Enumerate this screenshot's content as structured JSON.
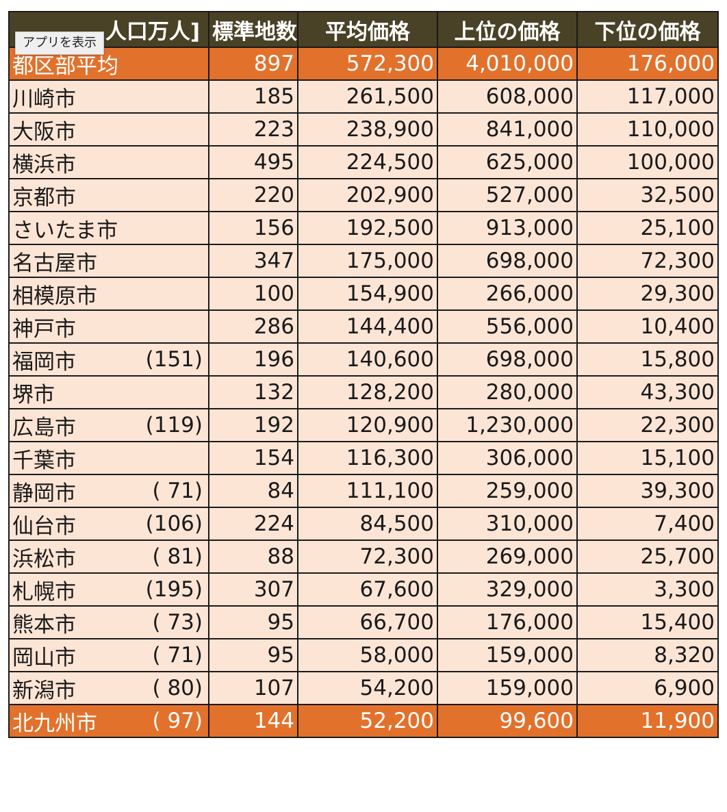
{
  "tooltip": {
    "label": "アプリを表示"
  },
  "header": {
    "name_partial": "人口万人]",
    "count": "標準地数",
    "avg": "平均価格",
    "top": "上位の価格",
    "low": "下位の価格"
  },
  "rows": [
    {
      "city": "都区部平均",
      "pop": "",
      "count": "897",
      "avg": "572,300",
      "top": "4,010,000",
      "low": "176,000",
      "highlight": true
    },
    {
      "city": "川崎市",
      "pop": "",
      "count": "185",
      "avg": "261,500",
      "top": "608,000",
      "low": "117,000"
    },
    {
      "city": "大阪市",
      "pop": "",
      "count": "223",
      "avg": "238,900",
      "top": "841,000",
      "low": "110,000"
    },
    {
      "city": "横浜市",
      "pop": "",
      "count": "495",
      "avg": "224,500",
      "top": "625,000",
      "low": "100,000"
    },
    {
      "city": "京都市",
      "pop": "",
      "count": "220",
      "avg": "202,900",
      "top": "527,000",
      "low": "32,500"
    },
    {
      "city": "さいたま市",
      "pop": "",
      "count": "156",
      "avg": "192,500",
      "top": "913,000",
      "low": "25,100"
    },
    {
      "city": "名古屋市",
      "pop": "",
      "count": "347",
      "avg": "175,000",
      "top": "698,000",
      "low": "72,300"
    },
    {
      "city": "相模原市",
      "pop": "",
      "count": "100",
      "avg": "154,900",
      "top": "266,000",
      "low": "29,300"
    },
    {
      "city": "神戸市",
      "pop": "",
      "count": "286",
      "avg": "144,400",
      "top": "556,000",
      "low": "10,400"
    },
    {
      "city": "福岡市",
      "pop": "(151)",
      "count": "196",
      "avg": "140,600",
      "top": "698,000",
      "low": "15,800"
    },
    {
      "city": "堺市",
      "pop": "",
      "count": "132",
      "avg": "128,200",
      "top": "280,000",
      "low": "43,300"
    },
    {
      "city": "広島市",
      "pop": "(119)",
      "count": "192",
      "avg": "120,900",
      "top": "1,230,000",
      "low": "22,300"
    },
    {
      "city": "千葉市",
      "pop": "",
      "count": "154",
      "avg": "116,300",
      "top": "306,000",
      "low": "15,100"
    },
    {
      "city": "静岡市",
      "pop": "( 71)",
      "count": "84",
      "avg": "111,100",
      "top": "259,000",
      "low": "39,300"
    },
    {
      "city": "仙台市",
      "pop": "(106)",
      "count": "224",
      "avg": "84,500",
      "top": "310,000",
      "low": "7,400"
    },
    {
      "city": "浜松市",
      "pop": "( 81)",
      "count": "88",
      "avg": "72,300",
      "top": "269,000",
      "low": "25,700"
    },
    {
      "city": "札幌市",
      "pop": "(195)",
      "count": "307",
      "avg": "67,600",
      "top": "329,000",
      "low": "3,300"
    },
    {
      "city": "熊本市",
      "pop": "( 73)",
      "count": "95",
      "avg": "66,700",
      "top": "176,000",
      "low": "15,400"
    },
    {
      "city": "岡山市",
      "pop": "( 71)",
      "count": "95",
      "avg": "58,000",
      "top": "159,000",
      "low": "8,320"
    },
    {
      "city": "新潟市",
      "pop": "( 80)",
      "count": "107",
      "avg": "54,200",
      "top": "159,000",
      "low": "6,900"
    },
    {
      "city": "北九州市",
      "pop": "( 97)",
      "count": "144",
      "avg": "52,200",
      "top": "99,600",
      "low": "11,900",
      "highlight": true
    }
  ],
  "colors": {
    "header_bg": "#4a4226",
    "row_bg": "#fde5d6",
    "highlight_bg": "#e2712c"
  }
}
